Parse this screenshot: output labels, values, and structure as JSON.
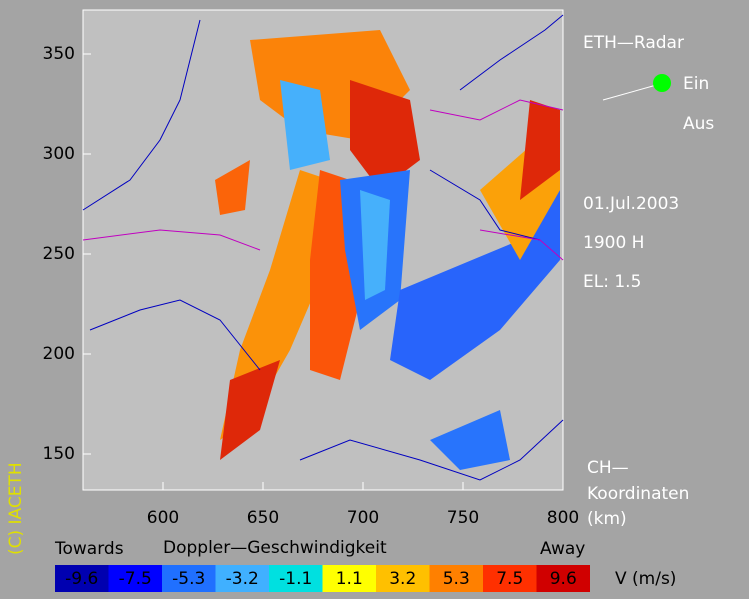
{
  "header": {
    "title": "ETH—Radar",
    "switch_on": "Ein",
    "switch_off": "Aus",
    "date": "01.Jul.2003",
    "time": "1900 H",
    "elevation": "EL: 1.5",
    "coord_line1": "CH—",
    "coord_line2": "Koordinaten",
    "coord_unit": "(km)",
    "copyright": "(C) IACETH"
  },
  "axes": {
    "xlim": [
      560,
      800
    ],
    "ylim": [
      132,
      372
    ],
    "xticks": [
      600,
      650,
      700,
      750,
      800
    ],
    "yticks": [
      150,
      200,
      250,
      300,
      350
    ]
  },
  "colorbar": {
    "title": "Doppler—Geschwindigkeit",
    "left_label": "Towards",
    "right_label": "Away",
    "unit": "V  (m/s)",
    "items": [
      {
        "label": "-9.6",
        "color": "#0000b0"
      },
      {
        "label": "-7.5",
        "color": "#0000ff"
      },
      {
        "label": "-5.3",
        "color": "#2070ff"
      },
      {
        "label": "-3.2",
        "color": "#40b0ff"
      },
      {
        "label": "-1.1",
        "color": "#00e0e0"
      },
      {
        "label": "1.1",
        "color": "#ffff00"
      },
      {
        "label": "3.2",
        "color": "#ffc000"
      },
      {
        "label": "5.3",
        "color": "#ff8000"
      },
      {
        "label": "7.5",
        "color": "#ff3000"
      },
      {
        "label": "9.6",
        "color": "#d00000"
      }
    ]
  }
}
